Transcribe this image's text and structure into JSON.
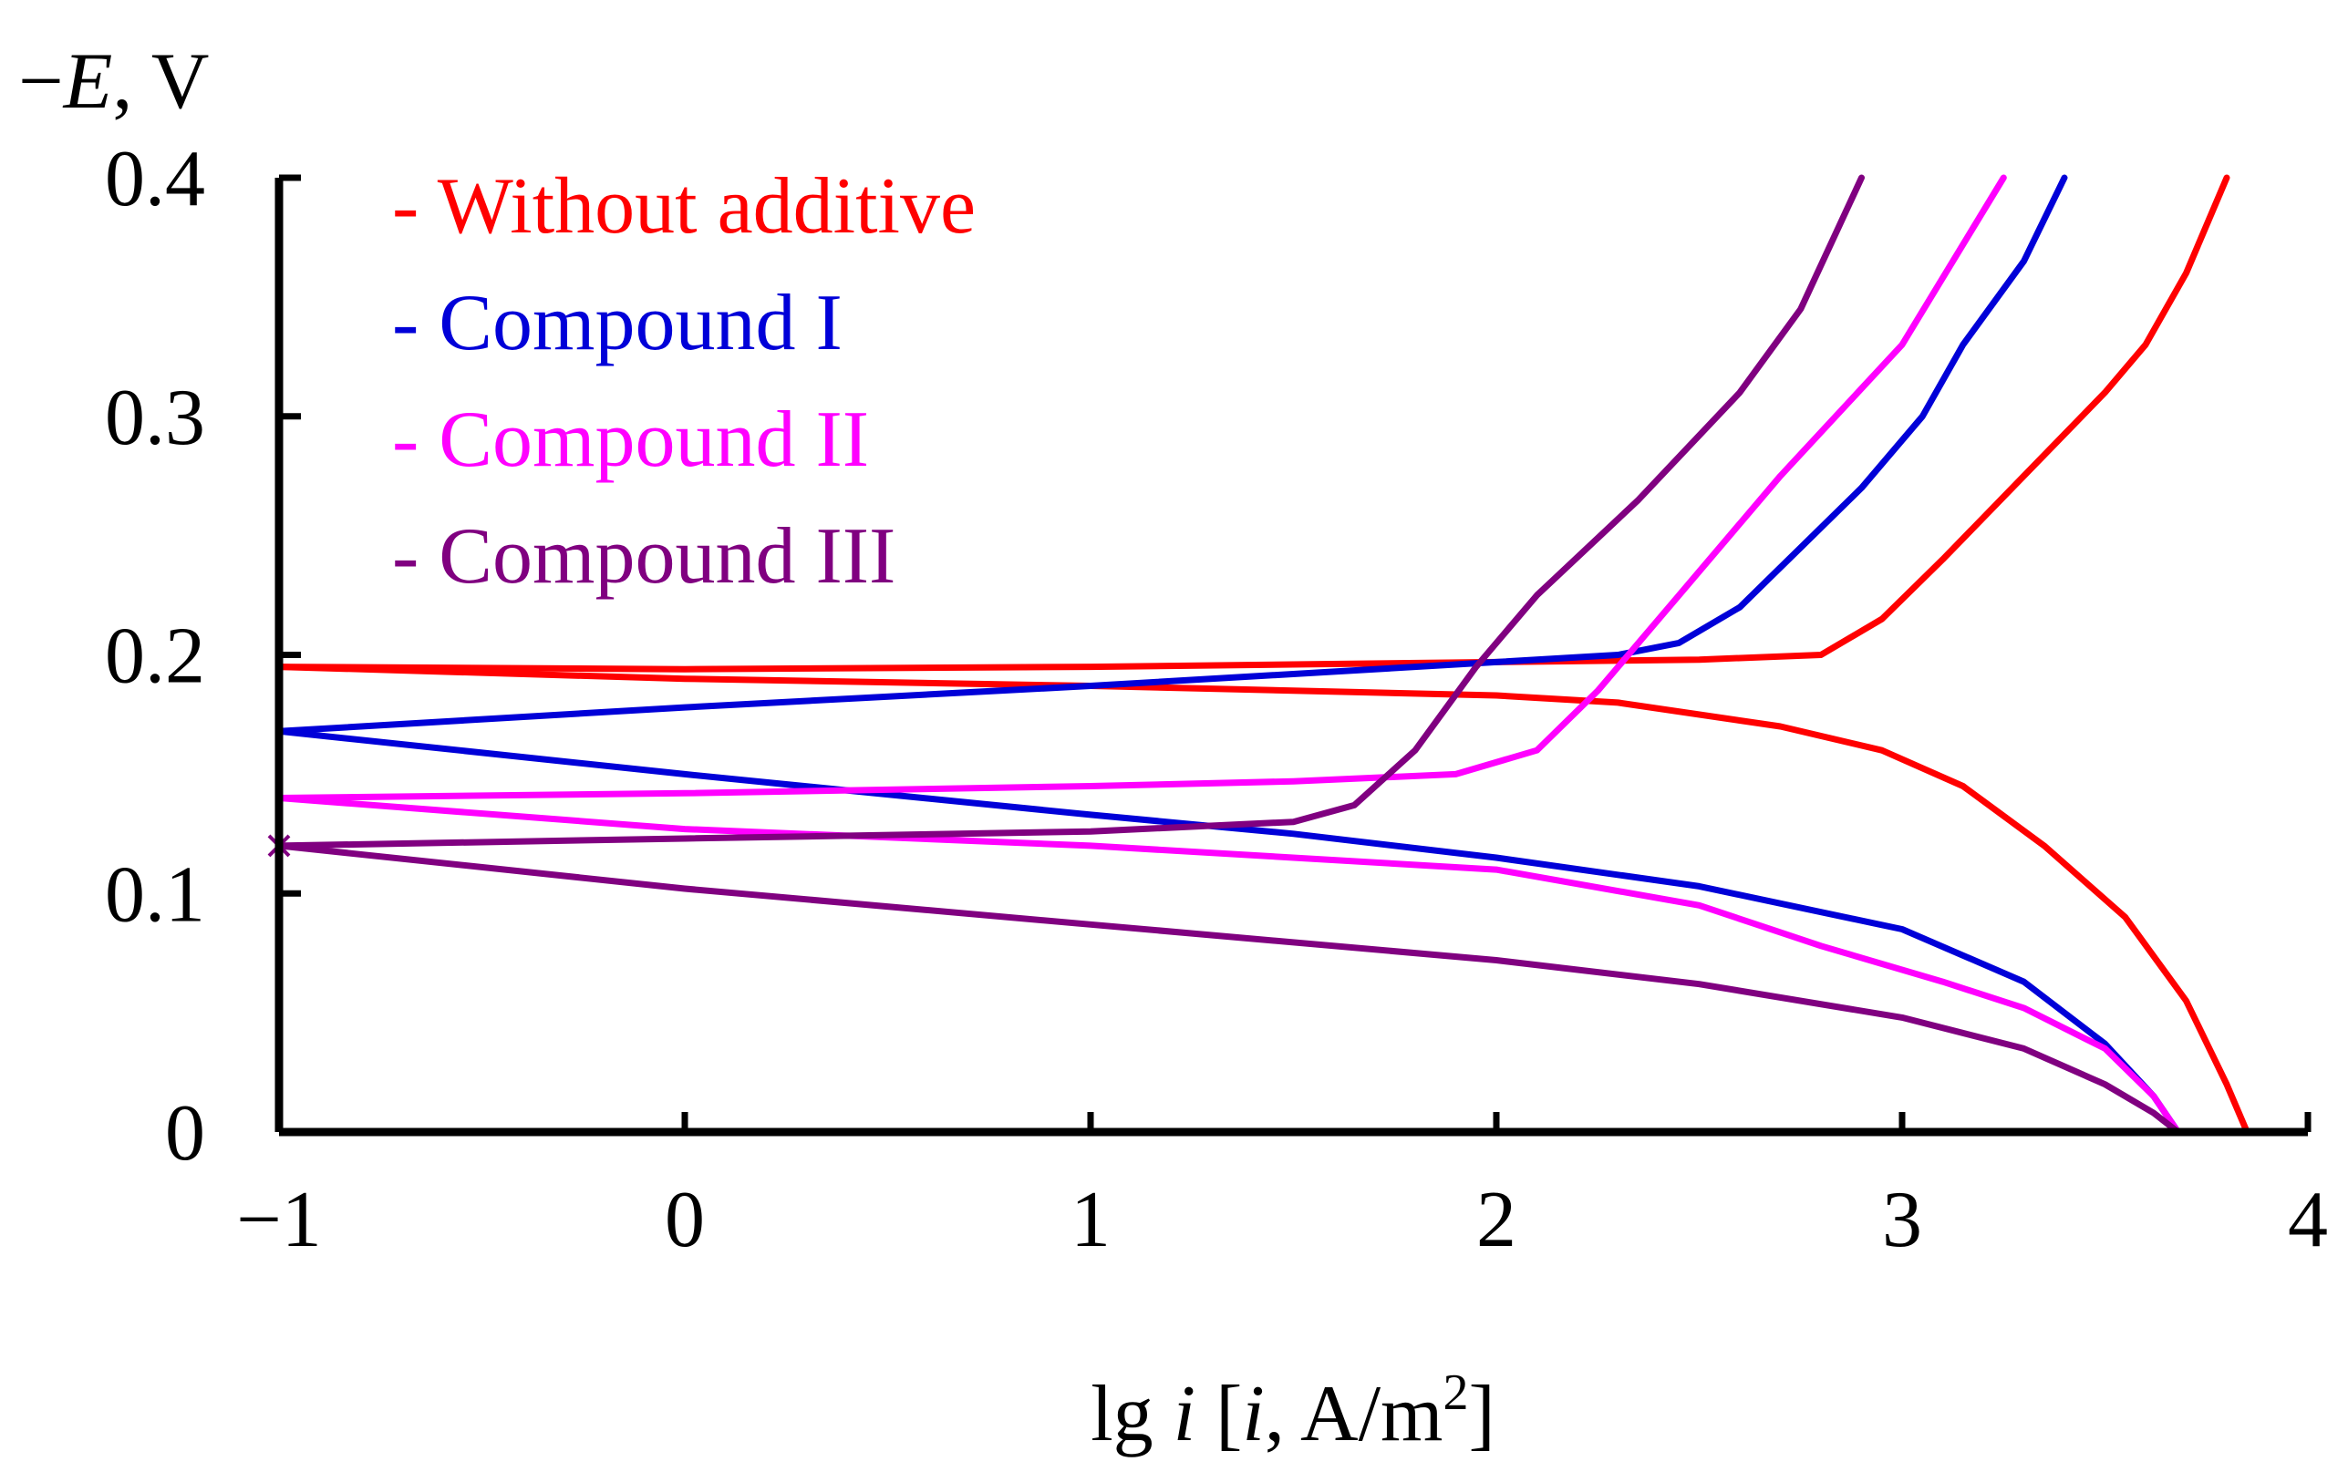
{
  "chart_data": {
    "type": "line",
    "ylabel_prefix": "−",
    "ylabel_var": "E",
    "ylabel_suffix": ", V",
    "xlabel_pre": "lg ",
    "xlabel_var1": "i",
    "xlabel_mid": " [",
    "xlabel_var2": "i",
    "xlabel_unit": ", A/m",
    "xlabel_exp": "2",
    "xlabel_post": "]",
    "xlim": [
      -1,
      4
    ],
    "ylim": [
      0,
      0.4
    ],
    "x_ticks": [
      "−1",
      "0",
      "1",
      "2",
      "3",
      "4"
    ],
    "x_tick_values": [
      -1,
      0,
      1,
      2,
      3,
      4
    ],
    "y_ticks": [
      "0",
      "0.1",
      "0.2",
      "0.3",
      "0.4"
    ],
    "y_tick_values": [
      0,
      0.1,
      0.2,
      0.3,
      0.4
    ],
    "grid": false,
    "legend_position": "top-left",
    "corrosion_marker": {
      "x": -1,
      "y": 0.12,
      "color": "#800080"
    },
    "series": [
      {
        "name": "Without additive",
        "color": "#ff0000",
        "cathodic": [
          [
            -1,
            0.195
          ],
          [
            0,
            0.194
          ],
          [
            1,
            0.195
          ],
          [
            2,
            0.197
          ],
          [
            2.5,
            0.198
          ],
          [
            2.8,
            0.2
          ],
          [
            2.95,
            0.215
          ],
          [
            3.1,
            0.24
          ],
          [
            3.3,
            0.275
          ],
          [
            3.5,
            0.31
          ],
          [
            3.6,
            0.33
          ],
          [
            3.7,
            0.36
          ],
          [
            3.8,
            0.4
          ]
        ],
        "anodic": [
          [
            -1,
            0.195
          ],
          [
            0,
            0.19
          ],
          [
            1,
            0.187
          ],
          [
            2,
            0.183
          ],
          [
            2.3,
            0.18
          ],
          [
            2.7,
            0.17
          ],
          [
            2.95,
            0.16
          ],
          [
            3.15,
            0.145
          ],
          [
            3.35,
            0.12
          ],
          [
            3.55,
            0.09
          ],
          [
            3.7,
            0.055
          ],
          [
            3.8,
            0.02
          ],
          [
            3.85,
            0
          ]
        ]
      },
      {
        "name": "Compound I",
        "color": "#0000d8",
        "cathodic": [
          [
            -1,
            0.168
          ],
          [
            0,
            0.178
          ],
          [
            1,
            0.187
          ],
          [
            2,
            0.197
          ],
          [
            2.3,
            0.2
          ],
          [
            2.45,
            0.205
          ],
          [
            2.6,
            0.22
          ],
          [
            2.75,
            0.245
          ],
          [
            2.9,
            0.27
          ],
          [
            3.05,
            0.3
          ],
          [
            3.15,
            0.33
          ],
          [
            3.3,
            0.365
          ],
          [
            3.4,
            0.4
          ]
        ],
        "anodic": [
          [
            -1,
            0.168
          ],
          [
            0,
            0.15
          ],
          [
            1,
            0.133
          ],
          [
            1.5,
            0.125
          ],
          [
            2,
            0.115
          ],
          [
            2.5,
            0.103
          ],
          [
            3,
            0.085
          ],
          [
            3.3,
            0.063
          ],
          [
            3.5,
            0.037
          ],
          [
            3.62,
            0.015
          ],
          [
            3.68,
            0
          ]
        ]
      },
      {
        "name": "Compound II",
        "color": "#ff00ff",
        "cathodic": [
          [
            -1,
            0.14
          ],
          [
            0,
            0.142
          ],
          [
            1,
            0.145
          ],
          [
            1.5,
            0.147
          ],
          [
            1.9,
            0.15
          ],
          [
            2.1,
            0.16
          ],
          [
            2.25,
            0.185
          ],
          [
            2.45,
            0.225
          ],
          [
            2.7,
            0.275
          ],
          [
            3.0,
            0.33
          ],
          [
            3.25,
            0.4
          ]
        ],
        "anodic": [
          [
            -1,
            0.14
          ],
          [
            0,
            0.127
          ],
          [
            1,
            0.12
          ],
          [
            2,
            0.11
          ],
          [
            2.5,
            0.095
          ],
          [
            2.8,
            0.078
          ],
          [
            3.1,
            0.063
          ],
          [
            3.3,
            0.052
          ],
          [
            3.5,
            0.035
          ],
          [
            3.62,
            0.015
          ],
          [
            3.68,
            0
          ]
        ]
      },
      {
        "name": "Compound III",
        "color": "#800080",
        "cathodic": [
          [
            -1,
            0.12
          ],
          [
            0,
            0.123
          ],
          [
            1,
            0.126
          ],
          [
            1.5,
            0.13
          ],
          [
            1.65,
            0.137
          ],
          [
            1.8,
            0.16
          ],
          [
            1.95,
            0.195
          ],
          [
            2.1,
            0.225
          ],
          [
            2.35,
            0.265
          ],
          [
            2.6,
            0.31
          ],
          [
            2.75,
            0.345
          ],
          [
            2.9,
            0.4
          ]
        ],
        "anodic": [
          [
            -1,
            0.12
          ],
          [
            0,
            0.102
          ],
          [
            1,
            0.087
          ],
          [
            2,
            0.072
          ],
          [
            2.5,
            0.062
          ],
          [
            3.0,
            0.048
          ],
          [
            3.3,
            0.035
          ],
          [
            3.5,
            0.02
          ],
          [
            3.62,
            0.008
          ],
          [
            3.68,
            0
          ]
        ]
      }
    ]
  }
}
